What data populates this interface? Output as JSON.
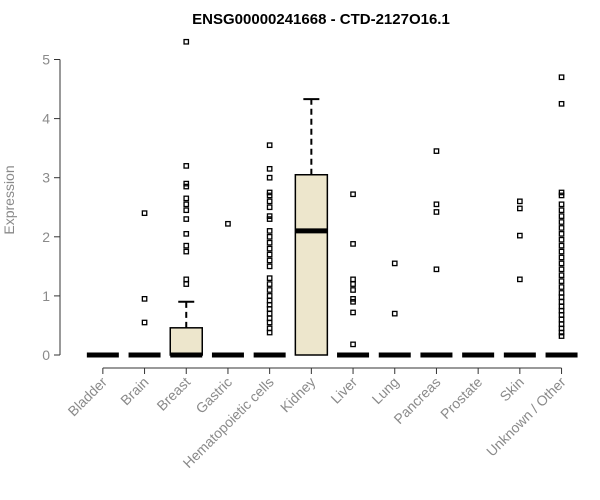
{
  "chart_data": {
    "type": "box",
    "title": "ENSG00000241668 - CTD-2127O16.1",
    "xlabel": "",
    "ylabel": "Expression",
    "ylim": [
      0,
      5.3
    ],
    "yticks": [
      0,
      1,
      2,
      3,
      4,
      5
    ],
    "grid": false,
    "box_fill": "#ede6cc",
    "categories": [
      "Bladder",
      "Brain",
      "Breast",
      "Gastric",
      "Hematopoietic cells",
      "Kidney",
      "Liver",
      "Lung",
      "Pancreas",
      "Prostate",
      "Skin",
      "Unknown / Other"
    ],
    "boxes": [
      {
        "name": "Bladder",
        "q1": 0,
        "median": 0,
        "q3": 0,
        "whisker_low": 0,
        "whisker_high": 0,
        "outliers": []
      },
      {
        "name": "Brain",
        "q1": 0,
        "median": 0,
        "q3": 0,
        "whisker_low": 0,
        "whisker_high": 0,
        "outliers": [
          0.55,
          0.95,
          2.4
        ]
      },
      {
        "name": "Breast",
        "q1": 0,
        "median": 0,
        "q3": 0.46,
        "whisker_low": 0,
        "whisker_high": 0.9,
        "outliers": [
          1.2,
          1.28,
          1.75,
          1.85,
          2.05,
          2.3,
          2.45,
          2.55,
          2.65,
          2.85,
          2.9,
          3.2,
          5.3
        ]
      },
      {
        "name": "Gastric",
        "q1": 0,
        "median": 0,
        "q3": 0,
        "whisker_low": 0,
        "whisker_high": 0,
        "outliers": [
          2.22
        ]
      },
      {
        "name": "Hematopoietic cells",
        "q1": 0,
        "median": 0,
        "q3": 0,
        "whisker_low": 0,
        "whisker_high": 0,
        "outliers": [
          0.38,
          0.45,
          0.55,
          0.62,
          0.7,
          0.78,
          0.85,
          0.92,
          1.0,
          1.1,
          1.2,
          1.3,
          1.5,
          1.6,
          1.7,
          1.8,
          1.9,
          2.0,
          2.1,
          2.3,
          2.35,
          2.5,
          2.6,
          2.7,
          2.75,
          3.0,
          3.15,
          3.55
        ]
      },
      {
        "name": "Kidney",
        "q1": 0,
        "median": 2.1,
        "q3": 3.05,
        "whisker_low": 0,
        "whisker_high": 4.33,
        "outliers": []
      },
      {
        "name": "Liver",
        "q1": 0,
        "median": 0,
        "q3": 0,
        "whisker_low": 0,
        "whisker_high": 0,
        "outliers": [
          0.18,
          0.72,
          0.9,
          0.95,
          1.1,
          1.2,
          1.28,
          1.88,
          2.72
        ]
      },
      {
        "name": "Lung",
        "q1": 0,
        "median": 0,
        "q3": 0,
        "whisker_low": 0,
        "whisker_high": 0,
        "outliers": [
          0.7,
          1.55
        ]
      },
      {
        "name": "Pancreas",
        "q1": 0,
        "median": 0,
        "q3": 0,
        "whisker_low": 0,
        "whisker_high": 0,
        "outliers": [
          1.45,
          2.42,
          2.55,
          3.45
        ]
      },
      {
        "name": "Prostate",
        "q1": 0,
        "median": 0,
        "q3": 0,
        "whisker_low": 0,
        "whisker_high": 0,
        "outliers": []
      },
      {
        "name": "Skin",
        "q1": 0,
        "median": 0,
        "q3": 0,
        "whisker_low": 0,
        "whisker_high": 0,
        "outliers": [
          1.28,
          2.02,
          2.48,
          2.6
        ]
      },
      {
        "name": "Unknown / Other",
        "q1": 0,
        "median": 0,
        "q3": 0,
        "whisker_low": 0,
        "whisker_high": 0,
        "outliers": [
          0.32,
          0.38,
          0.45,
          0.52,
          0.6,
          0.68,
          0.75,
          0.82,
          0.9,
          0.98,
          1.05,
          1.15,
          1.25,
          1.35,
          1.45,
          1.55,
          1.65,
          1.75,
          1.85,
          1.95,
          2.05,
          2.15,
          2.25,
          2.35,
          2.45,
          2.55,
          2.7,
          2.75,
          4.25,
          4.7
        ]
      }
    ]
  }
}
